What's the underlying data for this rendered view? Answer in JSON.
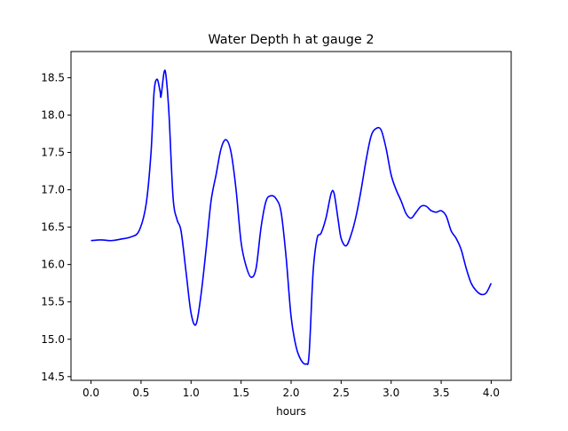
{
  "chart_data": {
    "type": "line",
    "title": "Water Depth h at gauge 2",
    "xlabel": "hours",
    "ylabel": "",
    "xlim": [
      -0.2,
      4.2
    ],
    "ylim": [
      14.45,
      18.85
    ],
    "xticks": [
      0.0,
      0.5,
      1.0,
      1.5,
      2.0,
      2.5,
      3.0,
      3.5,
      4.0
    ],
    "xtick_labels": [
      "0.0",
      "0.5",
      "1.0",
      "1.5",
      "2.0",
      "2.5",
      "3.0",
      "3.5",
      "4.0"
    ],
    "yticks": [
      14.5,
      15.0,
      15.5,
      16.0,
      16.5,
      17.0,
      17.5,
      18.0,
      18.5
    ],
    "ytick_labels": [
      "14.5",
      "15.0",
      "15.5",
      "16.0",
      "16.5",
      "17.0",
      "17.5",
      "18.0",
      "18.5"
    ],
    "grid": false,
    "series": [
      {
        "color": "#0000ff",
        "x": [
          0.0,
          0.1,
          0.2,
          0.3,
          0.4,
          0.48,
          0.55,
          0.6,
          0.63,
          0.66,
          0.69,
          0.7,
          0.73,
          0.75,
          0.78,
          0.82,
          0.86,
          0.9,
          0.95,
          1.0,
          1.05,
          1.1,
          1.15,
          1.2,
          1.25,
          1.3,
          1.35,
          1.4,
          1.45,
          1.5,
          1.55,
          1.6,
          1.65,
          1.7,
          1.75,
          1.8,
          1.85,
          1.9,
          1.95,
          2.0,
          2.05,
          2.1,
          2.15,
          2.18,
          2.22,
          2.26,
          2.3,
          2.35,
          2.4,
          2.43,
          2.47,
          2.5,
          2.55,
          2.6,
          2.65,
          2.7,
          2.75,
          2.8,
          2.85,
          2.9,
          2.95,
          3.0,
          3.05,
          3.1,
          3.15,
          3.2,
          3.25,
          3.3,
          3.35,
          3.4,
          3.45,
          3.5,
          3.55,
          3.6,
          3.65,
          3.7,
          3.75,
          3.8,
          3.85,
          3.9,
          3.95,
          4.0
        ],
        "y": [
          16.32,
          16.33,
          16.32,
          16.34,
          16.37,
          16.45,
          16.8,
          17.5,
          18.3,
          18.48,
          18.32,
          18.25,
          18.57,
          18.52,
          18.0,
          16.9,
          16.6,
          16.45,
          15.9,
          15.35,
          15.2,
          15.6,
          16.2,
          16.85,
          17.2,
          17.55,
          17.67,
          17.5,
          17.0,
          16.3,
          15.98,
          15.83,
          15.95,
          16.5,
          16.85,
          16.92,
          16.88,
          16.7,
          16.1,
          15.3,
          14.9,
          14.72,
          14.67,
          14.8,
          15.9,
          16.35,
          16.42,
          16.63,
          16.95,
          16.95,
          16.6,
          16.35,
          16.25,
          16.4,
          16.65,
          17.0,
          17.4,
          17.72,
          17.82,
          17.8,
          17.55,
          17.2,
          17.0,
          16.85,
          16.68,
          16.62,
          16.7,
          16.78,
          16.78,
          16.72,
          16.7,
          16.72,
          16.65,
          16.45,
          16.35,
          16.2,
          15.95,
          15.75,
          15.65,
          15.6,
          15.62,
          15.75
        ]
      }
    ]
  }
}
